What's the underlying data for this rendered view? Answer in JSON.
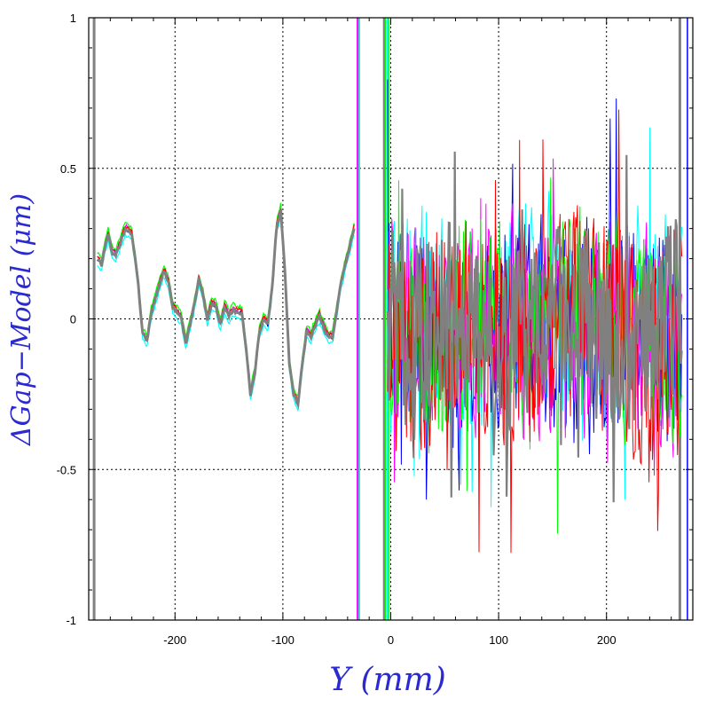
{
  "chart_data": {
    "type": "line",
    "title": "",
    "xlabel": "Y (mm)",
    "ylabel": "ΔGap−Model (μm)",
    "xlim": [
      -280,
      280
    ],
    "ylim": [
      -1,
      1
    ],
    "grid": true,
    "x_ticks": [
      -200,
      -100,
      0,
      100,
      200
    ],
    "x_tick_labels": [
      "-200",
      "-100",
      "0",
      "100",
      "200"
    ],
    "y_ticks": [
      -1,
      -0.5,
      0,
      0.5,
      1
    ],
    "y_tick_labels": [
      "-1",
      "-0.5",
      "0",
      "0.5",
      "1"
    ],
    "vertical_lines": [
      {
        "x": -30,
        "color": "#808080"
      },
      {
        "x": -31,
        "color": "#ff00ff"
      },
      {
        "x": -29,
        "color": "#00ffff"
      },
      {
        "x": -6,
        "color": "#808080"
      },
      {
        "x": -5,
        "color": "#00ff00"
      },
      {
        "x": -3,
        "color": "#00ffff"
      },
      {
        "x": -2,
        "color": "#00ff00"
      },
      {
        "x": 268,
        "color": "#808080"
      },
      {
        "x": 275,
        "color": "#0000ff"
      },
      {
        "x": -275,
        "color": "#808080"
      }
    ],
    "series": [
      {
        "color": "#00ffff",
        "offset": -0.02,
        "seed": 11
      },
      {
        "color": "#0000ff",
        "offset": 0.0,
        "seed": 23
      },
      {
        "color": "#ff00ff",
        "offset": 0.01,
        "seed": 37
      },
      {
        "color": "#00ff00",
        "offset": 0.02,
        "seed": 51
      },
      {
        "color": "#ff0000",
        "offset": 0.01,
        "seed": 67
      },
      {
        "color": "#808080",
        "offset": 0.0,
        "seed": 79
      }
    ],
    "smooth_region": {
      "x": [
        -272,
        -268,
        -265,
        -262,
        -258,
        -255,
        -250,
        -246,
        -240,
        -235,
        -230,
        -226,
        -222,
        -218,
        -214,
        -210,
        -206,
        -202,
        -198,
        -194,
        -190,
        -186,
        -182,
        -178,
        -174,
        -170,
        -166,
        -162,
        -158,
        -154,
        -150,
        -146,
        -142,
        -138,
        -134,
        -130,
        -126,
        -122,
        -118,
        -114,
        -110,
        -106,
        -102,
        -98,
        -94,
        -90,
        -86,
        -82,
        -78,
        -74,
        -70,
        -66,
        -62,
        -58,
        -54,
        -50,
        -46,
        -42,
        -38,
        -34
      ],
      "y": [
        0.2,
        0.18,
        0.24,
        0.28,
        0.22,
        0.21,
        0.26,
        0.3,
        0.28,
        0.15,
        -0.05,
        -0.07,
        0.02,
        0.07,
        0.12,
        0.16,
        0.12,
        0.04,
        0.02,
        0.0,
        -0.08,
        -0.02,
        0.05,
        0.13,
        0.08,
        0.0,
        0.05,
        0.04,
        -0.02,
        0.04,
        0.01,
        0.03,
        0.02,
        0.02,
        -0.1,
        -0.25,
        -0.18,
        -0.05,
        0.0,
        -0.02,
        0.1,
        0.3,
        0.36,
        0.15,
        -0.15,
        -0.25,
        -0.28,
        -0.15,
        -0.04,
        -0.06,
        -0.02,
        0.01,
        -0.03,
        -0.06,
        -0.06,
        0.03,
        0.12,
        0.18,
        0.24,
        0.3
      ]
    },
    "noisy_region": {
      "x_start": -3,
      "x_end": 270,
      "step": 0.8,
      "amplitude": 0.34
    }
  }
}
